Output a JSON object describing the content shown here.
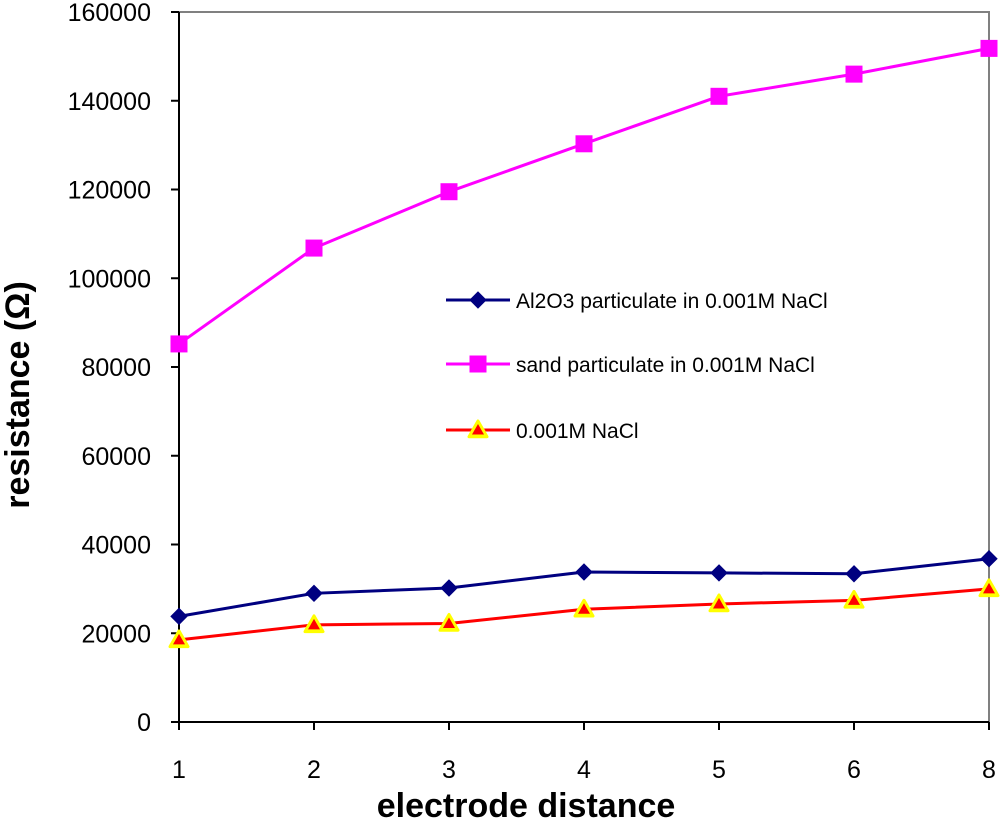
{
  "chart_data": {
    "type": "line",
    "title": "",
    "xlabel": "electrode distance",
    "ylabel": "resistance (Ω)",
    "categories": [
      "1",
      "2",
      "3",
      "4",
      "5",
      "6",
      "8"
    ],
    "ylim": [
      0,
      160000
    ],
    "yticks": [
      "0",
      "20000",
      "40000",
      "60000",
      "80000",
      "100000",
      "120000",
      "140000",
      "160000"
    ],
    "grid": false,
    "legend_position": "center-right",
    "series": [
      {
        "name": "Al2O3 particulate in 0.001M NaCl",
        "color": "#000080",
        "marker": "diamond",
        "values": [
          23800,
          29000,
          30200,
          33800,
          33600,
          33400,
          36800
        ]
      },
      {
        "name": "sand particulate in 0.001M NaCl",
        "color": "#FF00FF",
        "marker": "square",
        "values": [
          85200,
          106800,
          119500,
          130300,
          141000,
          146000,
          151800
        ]
      },
      {
        "name": "0.001M NaCl",
        "color": "#FF0000",
        "marker": "triangle",
        "marker_fill": "#FFFF00",
        "values": [
          18500,
          21900,
          22200,
          25400,
          26600,
          27400,
          30000
        ]
      }
    ]
  }
}
